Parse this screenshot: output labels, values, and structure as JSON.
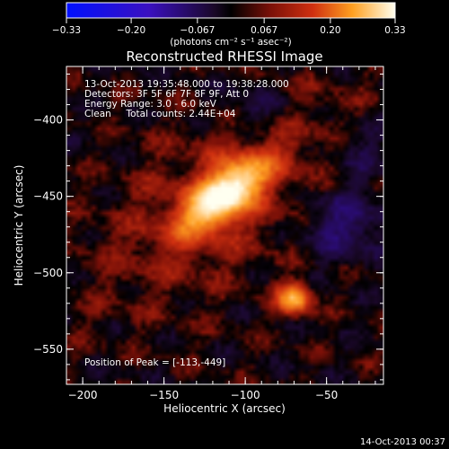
{
  "chart_data": {
    "type": "heatmap",
    "title": "Reconstructed RHESSI Image",
    "xlabel": "Heliocentric X (arcsec)",
    "ylabel": "Heliocentric Y (arcsec)",
    "xlim": [
      -210,
      -15
    ],
    "ylim": [
      -573,
      -365
    ],
    "x_ticks": [
      -200,
      -150,
      -100,
      -50
    ],
    "x_tick_labels": [
      "−200",
      "−150",
      "−100",
      "−50"
    ],
    "y_ticks": [
      -400,
      -450,
      -500,
      -550
    ],
    "y_tick_labels": [
      "−400",
      "−450",
      "−500",
      "−550"
    ],
    "colorbar": {
      "range": [
        -0.33,
        0.33
      ],
      "ticks": [
        -0.33,
        -0.2,
        -0.067,
        0.067,
        0.2,
        0.33
      ],
      "tick_labels": [
        "−0.33",
        "−0.20",
        "−0.067",
        "0.067",
        "0.20",
        "0.33"
      ],
      "units_label": "(photons cm⁻² s⁻¹ asec⁻²)"
    },
    "sources": [
      {
        "x": -113,
        "y": -449,
        "peak": 0.33
      },
      {
        "x": -70,
        "y": -517,
        "peak": 0.22
      }
    ],
    "annotations": [
      "13-Oct-2013 19:35:48.000 to 19:38:28.000",
      "Detectors: 3F 5F 6F 7F 8F 9F, Att 0",
      "Energy Range: 3.0 - 6.0 keV",
      "Clean     Total counts: 2.44E+04"
    ],
    "peak_label": "Position of Peak = [-113,-449]",
    "footer": "14-Oct-2013 00:37"
  }
}
